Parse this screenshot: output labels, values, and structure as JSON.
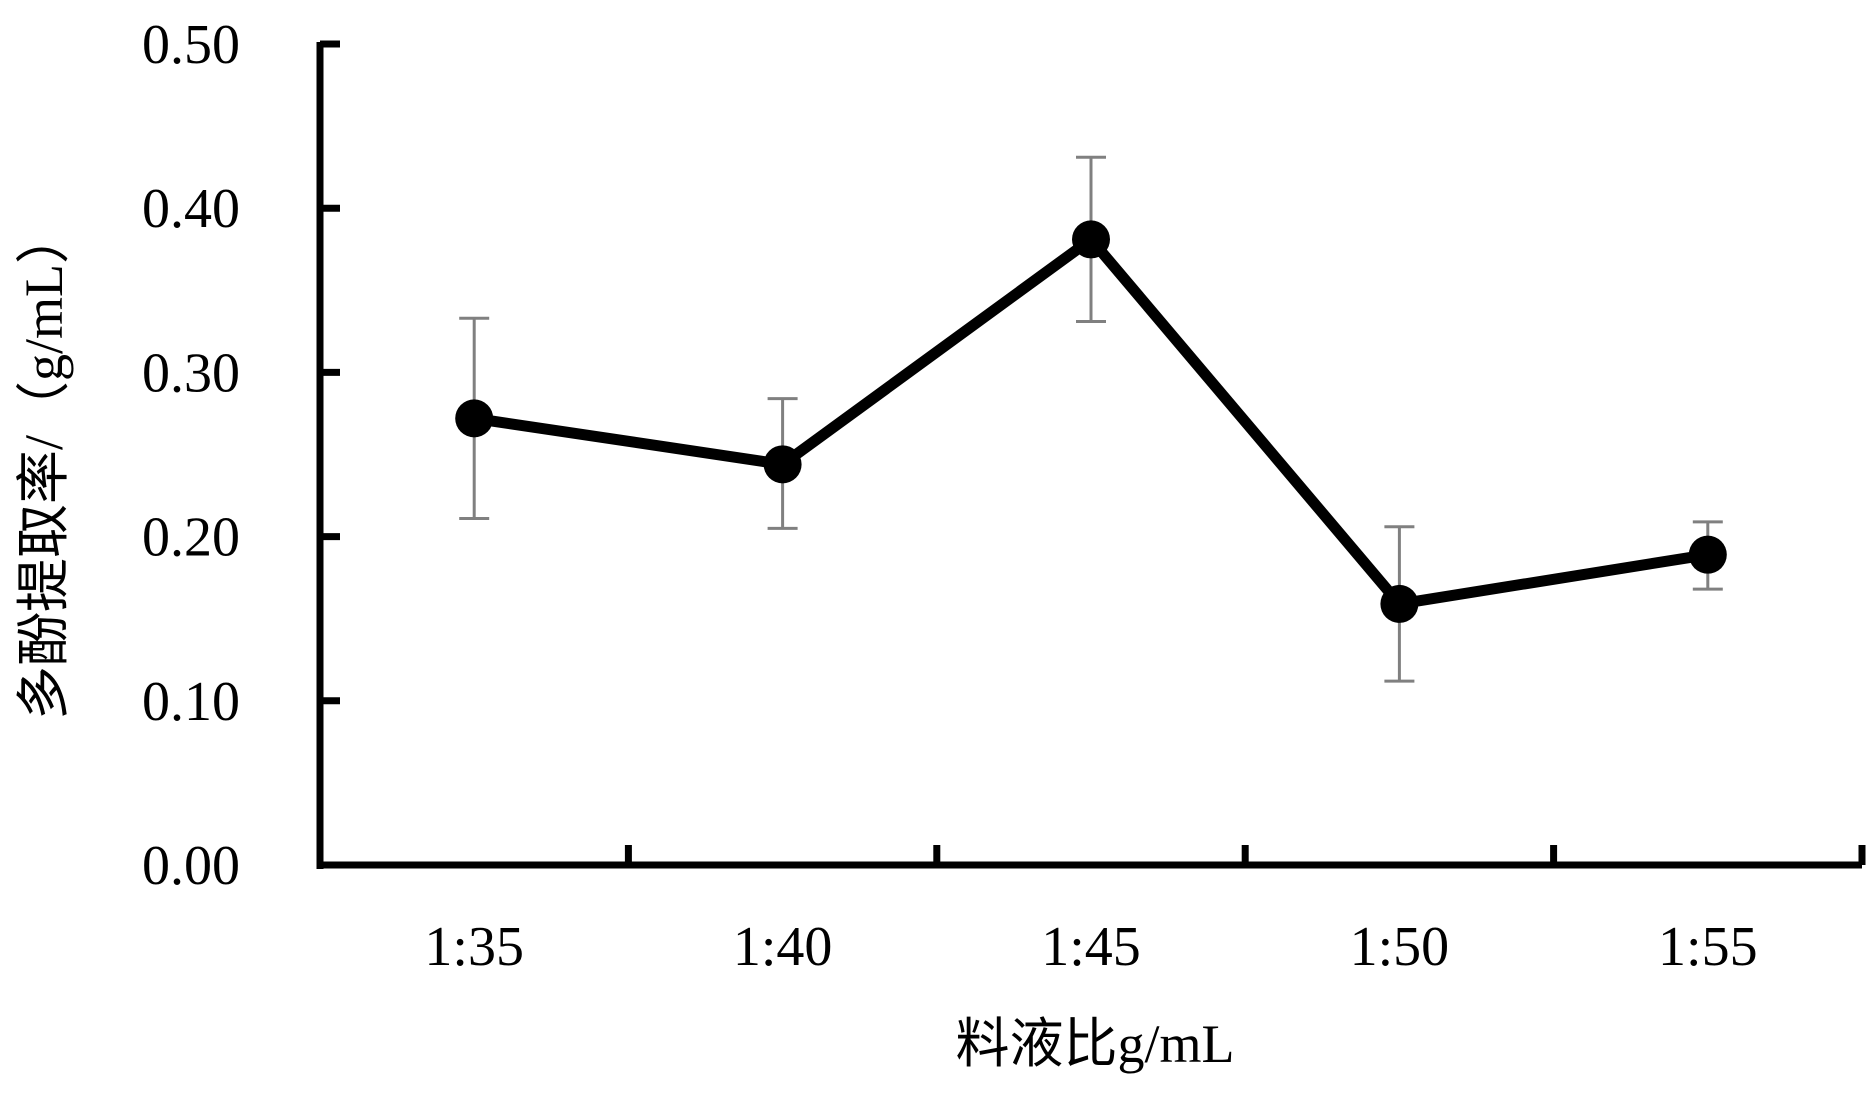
{
  "chart_data": {
    "type": "line",
    "title": "",
    "xlabel": "料液比g/mL",
    "ylabel": "多酚提取率/（g/mL）",
    "categories": [
      "1:35",
      "1:40",
      "1:45",
      "1:50",
      "1:55"
    ],
    "ylim": [
      0.0,
      0.5
    ],
    "yticks": [
      "0.00",
      "0.10",
      "0.20",
      "0.30",
      "0.40",
      "0.50"
    ],
    "grid": false,
    "legend": "none",
    "series": [
      {
        "values": [
          0.272,
          0.244,
          0.381,
          0.159,
          0.189
        ],
        "error_low": [
          0.211,
          0.205,
          0.331,
          0.112,
          0.168
        ],
        "error_high": [
          0.333,
          0.284,
          0.431,
          0.206,
          0.209
        ]
      }
    ],
    "colors": {
      "line": "#000000",
      "marker": "#000000",
      "error_bar": "#808080",
      "axis": "#000000"
    }
  }
}
